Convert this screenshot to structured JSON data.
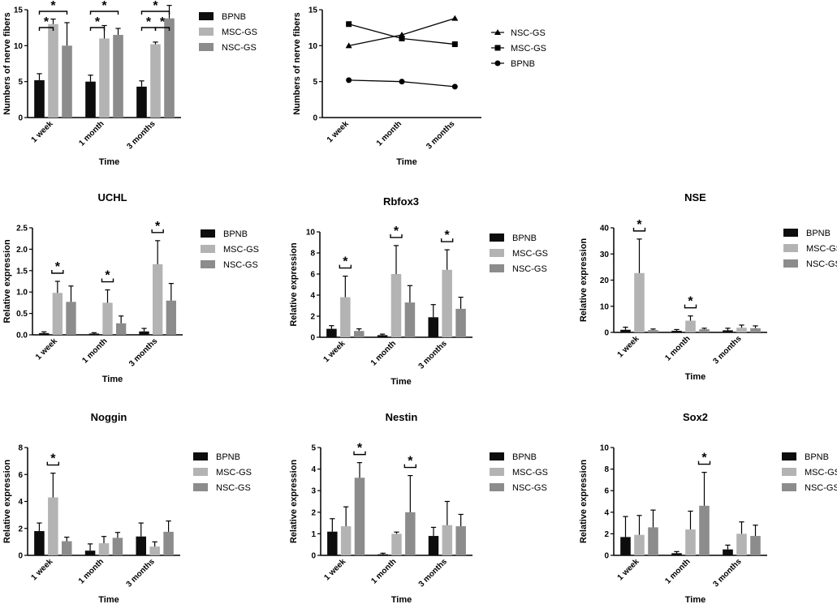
{
  "colors": {
    "BPNB": "#0d0d0d",
    "MSC-GS": "#b3b3b3",
    "NSC-GS": "#8c8c8c"
  },
  "chart_data": [
    {
      "id": "fibers-bar",
      "type": "bar",
      "title": "",
      "xlabel": "Time",
      "ylabel": "Numbers of nerve fibers",
      "ylim": [
        0,
        15
      ],
      "yticks": [
        "0",
        "5",
        "10",
        "15"
      ],
      "categories": [
        "1 week",
        "1 month",
        "3 months"
      ],
      "series": [
        {
          "name": "BPNB",
          "values": [
            5.2,
            5.0,
            4.3
          ],
          "errors": [
            0.9,
            0.9,
            0.8
          ]
        },
        {
          "name": "MSC-GS",
          "values": [
            13.0,
            11.0,
            10.2
          ],
          "errors": [
            0.7,
            1.8,
            0.3
          ]
        },
        {
          "name": "NSC-GS",
          "values": [
            10.0,
            11.5,
            13.8
          ],
          "errors": [
            3.2,
            0.9,
            1.8
          ]
        }
      ],
      "annotations": [
        {
          "group": 0,
          "from": 0,
          "to": 1,
          "level": 0,
          "text": "*"
        },
        {
          "group": 0,
          "from": 0,
          "to": 2,
          "level": 1,
          "text": "*"
        },
        {
          "group": 1,
          "from": 0,
          "to": 1,
          "level": 0,
          "text": "*"
        },
        {
          "group": 1,
          "from": 0,
          "to": 2,
          "level": 1,
          "text": "*"
        },
        {
          "group": 2,
          "from": 0,
          "to": 1,
          "level": 0,
          "text": "*"
        },
        {
          "group": 2,
          "from": 1,
          "to": 2,
          "level": 0,
          "text": "*"
        },
        {
          "group": 2,
          "from": 0,
          "to": 2,
          "level": 1,
          "text": "*"
        }
      ]
    },
    {
      "id": "fibers-line",
      "type": "line",
      "title": "",
      "xlabel": "Time",
      "ylabel": "Numbers of nerve fibers",
      "ylim": [
        0,
        15
      ],
      "yticks": [
        "0",
        "5",
        "10",
        "15"
      ],
      "categories": [
        "1 week",
        "1 month",
        "3 months"
      ],
      "series": [
        {
          "name": "NSC-GS",
          "marker": "triangle",
          "values": [
            10.0,
            11.5,
            13.8
          ]
        },
        {
          "name": "MSC-GS",
          "marker": "square",
          "values": [
            13.0,
            11.0,
            10.2
          ]
        },
        {
          "name": "BPNB",
          "marker": "circle",
          "values": [
            5.2,
            5.0,
            4.3
          ]
        }
      ]
    },
    {
      "id": "uchl",
      "type": "bar",
      "title": "UCHL",
      "xlabel": "Time",
      "ylabel": "Relative expression",
      "ylim": [
        0,
        2.5
      ],
      "yticks": [
        "0.0",
        "0.5",
        "1.0",
        "1.5",
        "2.0",
        "2.5"
      ],
      "categories": [
        "1 week",
        "1 month",
        "3 months"
      ],
      "series": [
        {
          "name": "BPNB",
          "values": [
            0.04,
            0.03,
            0.08
          ],
          "errors": [
            0.03,
            0.02,
            0.07
          ]
        },
        {
          "name": "MSC-GS",
          "values": [
            0.98,
            0.75,
            1.65
          ],
          "errors": [
            0.27,
            0.3,
            0.55
          ]
        },
        {
          "name": "NSC-GS",
          "values": [
            0.77,
            0.27,
            0.8
          ],
          "errors": [
            0.37,
            0.17,
            0.4
          ]
        }
      ],
      "annotations": [
        {
          "group": 0,
          "from": 1,
          "to": 1,
          "level": 0,
          "text": "*"
        },
        {
          "group": 1,
          "from": 1,
          "to": 1,
          "level": 0,
          "text": "*"
        },
        {
          "group": 2,
          "from": 1,
          "to": 1,
          "level": 0,
          "text": "*"
        }
      ]
    },
    {
      "id": "rbfox3",
      "type": "bar",
      "title": "Rbfox3",
      "xlabel": "Time",
      "ylabel": "Relative expression",
      "ylim": [
        0,
        10
      ],
      "yticks": [
        "0",
        "2",
        "4",
        "6",
        "8",
        "10"
      ],
      "categories": [
        "1 week",
        "1 month",
        "3 months"
      ],
      "series": [
        {
          "name": "BPNB",
          "values": [
            0.8,
            0.2,
            1.9
          ],
          "errors": [
            0.3,
            0.1,
            1.2
          ]
        },
        {
          "name": "MSC-GS",
          "values": [
            3.8,
            6.0,
            6.4
          ],
          "errors": [
            2.0,
            2.7,
            1.9
          ]
        },
        {
          "name": "NSC-GS",
          "values": [
            0.6,
            3.3,
            2.7
          ],
          "errors": [
            0.2,
            1.6,
            1.1
          ]
        }
      ],
      "annotations": [
        {
          "group": 0,
          "from": 1,
          "to": 1,
          "level": 0,
          "text": "*"
        },
        {
          "group": 1,
          "from": 1,
          "to": 1,
          "level": 0,
          "text": "*"
        },
        {
          "group": 2,
          "from": 1,
          "to": 1,
          "level": 0,
          "text": "*"
        }
      ]
    },
    {
      "id": "nse",
      "type": "bar",
      "title": "NSE",
      "xlabel": "Time",
      "ylabel": "Relative expression",
      "ylim": [
        0,
        40
      ],
      "yticks": [
        "0",
        "10",
        "20",
        "30",
        "40"
      ],
      "categories": [
        "1 week",
        "1 month",
        "3 months"
      ],
      "series": [
        {
          "name": "BPNB",
          "values": [
            1.0,
            0.6,
            0.8
          ],
          "errors": [
            1.0,
            0.5,
            0.8
          ]
        },
        {
          "name": "MSC-GS",
          "values": [
            22.7,
            4.5,
            1.8
          ],
          "errors": [
            13.0,
            1.8,
            1.0
          ]
        },
        {
          "name": "NSC-GS",
          "values": [
            0.9,
            1.2,
            1.6
          ],
          "errors": [
            0.4,
            0.4,
            0.9
          ]
        }
      ],
      "annotations": [
        {
          "group": 0,
          "from": 1,
          "to": 1,
          "level": 0,
          "text": "*"
        },
        {
          "group": 1,
          "from": 1,
          "to": 1,
          "level": 0,
          "text": "*"
        }
      ]
    },
    {
      "id": "noggin",
      "type": "bar",
      "title": "Noggin",
      "xlabel": "Time",
      "ylabel": "Relative expression",
      "ylim": [
        0,
        8
      ],
      "yticks": [
        "0",
        "2",
        "4",
        "6",
        "8"
      ],
      "categories": [
        "1 week",
        "1 month",
        "3 months"
      ],
      "series": [
        {
          "name": "BPNB",
          "values": [
            1.8,
            0.35,
            1.4
          ],
          "errors": [
            0.6,
            0.5,
            1.0
          ]
        },
        {
          "name": "MSC-GS",
          "values": [
            4.3,
            0.9,
            0.65
          ],
          "errors": [
            1.8,
            0.5,
            0.35
          ]
        },
        {
          "name": "NSC-GS",
          "values": [
            1.05,
            1.3,
            1.75
          ],
          "errors": [
            0.3,
            0.4,
            0.8
          ]
        }
      ],
      "annotations": [
        {
          "group": 0,
          "from": 1,
          "to": 1,
          "level": 0,
          "text": "*"
        }
      ]
    },
    {
      "id": "nestin",
      "type": "bar",
      "title": "Nestin",
      "xlabel": "Time",
      "ylabel": "Relative expression",
      "ylim": [
        0,
        5
      ],
      "yticks": [
        "0",
        "1",
        "2",
        "3",
        "4",
        "5"
      ],
      "categories": [
        "1 week",
        "1 month",
        "3 months"
      ],
      "series": [
        {
          "name": "BPNB",
          "values": [
            1.1,
            0.05,
            0.9
          ],
          "errors": [
            0.6,
            0.05,
            0.4
          ]
        },
        {
          "name": "MSC-GS",
          "values": [
            1.35,
            1.0,
            1.4
          ],
          "errors": [
            0.9,
            0.08,
            1.1
          ]
        },
        {
          "name": "NSC-GS",
          "values": [
            3.6,
            2.0,
            1.35
          ],
          "errors": [
            0.7,
            1.7,
            0.55
          ]
        }
      ],
      "annotations": [
        {
          "group": 0,
          "from": 2,
          "to": 2,
          "level": 0,
          "text": "*"
        },
        {
          "group": 1,
          "from": 2,
          "to": 2,
          "level": 0,
          "text": "*"
        }
      ]
    },
    {
      "id": "sox2",
      "type": "bar",
      "title": "Sox2",
      "xlabel": "Time",
      "ylabel": "Relative expression",
      "ylim": [
        0,
        10
      ],
      "yticks": [
        "0",
        "2",
        "4",
        "6",
        "8",
        "10"
      ],
      "categories": [
        "1 week",
        "1 month",
        "3 months"
      ],
      "series": [
        {
          "name": "BPNB",
          "values": [
            1.7,
            0.2,
            0.55
          ],
          "errors": [
            1.9,
            0.15,
            0.4
          ]
        },
        {
          "name": "MSC-GS",
          "values": [
            1.9,
            2.4,
            2.0
          ],
          "errors": [
            1.8,
            1.7,
            1.1
          ]
        },
        {
          "name": "NSC-GS",
          "values": [
            2.6,
            4.6,
            1.8
          ],
          "errors": [
            1.6,
            3.1,
            1.0
          ]
        }
      ],
      "annotations": [
        {
          "group": 1,
          "from": 2,
          "to": 2,
          "level": 0,
          "text": "*"
        }
      ]
    }
  ]
}
